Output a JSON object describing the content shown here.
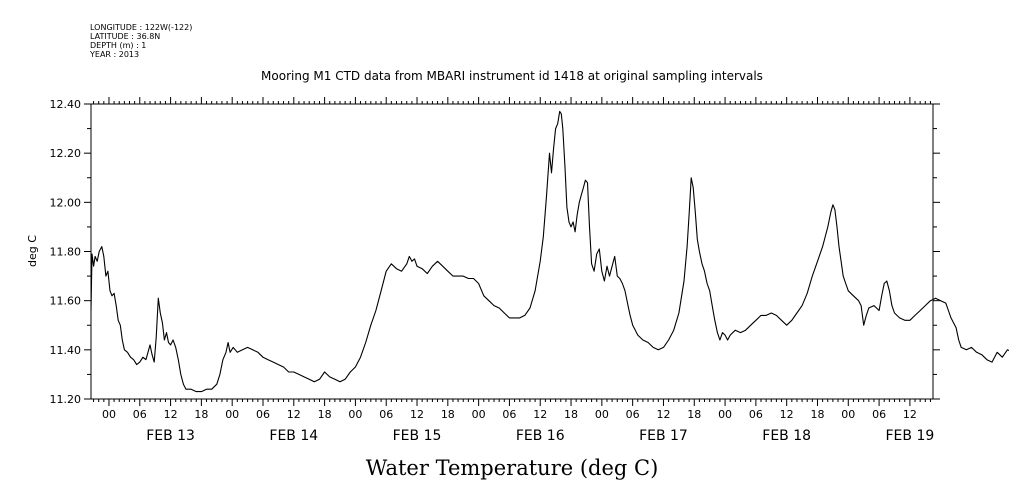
{
  "header": {
    "longitude": "LONGITUDE : 122W(-122)",
    "latitude": "LATITUDE : 36.8N",
    "depth": "DEPTH (m) : 1",
    "year": "YEAR : 2013"
  },
  "chart_data": {
    "type": "line",
    "title": "Mooring M1 CTD data from MBARI instrument id 1418 at original sampling intervals",
    "xlabel": "Water Temperature (deg C)",
    "ylabel": "deg C",
    "ylim": [
      11.2,
      12.4
    ],
    "yticks": [
      "11.20",
      "11.40",
      "11.60",
      "11.80",
      "12.00",
      "12.20",
      "12.40"
    ],
    "xlim_hours": [
      -3.5,
      160.5
    ],
    "x_unit": "hours since FEB 13 00:00",
    "hour_labels": [
      "00",
      "06",
      "12",
      "18"
    ],
    "days": [
      "FEB 13",
      "FEB 14",
      "FEB 15",
      "FEB 16",
      "FEB 17",
      "FEB 18",
      "FEB 19"
    ],
    "grid": false,
    "series": [
      {
        "values": [
          [
            -3.5,
            11.56
          ],
          [
            -3.3,
            11.79
          ],
          [
            -3.0,
            11.74
          ],
          [
            -2.7,
            11.78
          ],
          [
            -2.3,
            11.76
          ],
          [
            -1.9,
            11.8
          ],
          [
            -1.4,
            11.82
          ],
          [
            -1.0,
            11.78
          ],
          [
            -0.6,
            11.7
          ],
          [
            -0.2,
            11.72
          ],
          [
            0.2,
            11.64
          ],
          [
            0.6,
            11.62
          ],
          [
            1.0,
            11.63
          ],
          [
            1.4,
            11.58
          ],
          [
            1.8,
            11.52
          ],
          [
            2.2,
            11.5
          ],
          [
            2.6,
            11.44
          ],
          [
            3.0,
            11.4
          ],
          [
            3.6,
            11.39
          ],
          [
            4.2,
            11.37
          ],
          [
            4.8,
            11.36
          ],
          [
            5.4,
            11.34
          ],
          [
            6.0,
            11.35
          ],
          [
            6.6,
            11.37
          ],
          [
            7.2,
            11.36
          ],
          [
            7.6,
            11.39
          ],
          [
            8.0,
            11.42
          ],
          [
            8.4,
            11.38
          ],
          [
            8.8,
            11.35
          ],
          [
            9.2,
            11.45
          ],
          [
            9.6,
            11.61
          ],
          [
            10.0,
            11.55
          ],
          [
            10.4,
            11.51
          ],
          [
            10.8,
            11.44
          ],
          [
            11.2,
            11.47
          ],
          [
            11.6,
            11.43
          ],
          [
            12.0,
            11.42
          ],
          [
            12.5,
            11.44
          ],
          [
            13.0,
            11.41
          ],
          [
            13.5,
            11.36
          ],
          [
            14.0,
            11.3
          ],
          [
            14.5,
            11.26
          ],
          [
            15.0,
            11.24
          ],
          [
            16.0,
            11.24
          ],
          [
            17.0,
            11.23
          ],
          [
            18.0,
            11.23
          ],
          [
            19.0,
            11.24
          ],
          [
            20.0,
            11.24
          ],
          [
            21.0,
            11.26
          ],
          [
            21.6,
            11.3
          ],
          [
            22.2,
            11.36
          ],
          [
            22.8,
            11.39
          ],
          [
            23.2,
            11.43
          ],
          [
            23.6,
            11.39
          ],
          [
            24.2,
            11.41
          ],
          [
            25.0,
            11.39
          ],
          [
            26.0,
            11.4
          ],
          [
            27.0,
            11.41
          ],
          [
            28.0,
            11.4
          ],
          [
            29.0,
            11.39
          ],
          [
            30.0,
            11.37
          ],
          [
            31.0,
            11.36
          ],
          [
            32.0,
            11.35
          ],
          [
            33.0,
            11.34
          ],
          [
            34.0,
            11.33
          ],
          [
            35.0,
            11.31
          ],
          [
            36.0,
            11.31
          ],
          [
            37.0,
            11.3
          ],
          [
            38.0,
            11.29
          ],
          [
            39.0,
            11.28
          ],
          [
            40.0,
            11.27
          ],
          [
            41.0,
            11.28
          ],
          [
            42.0,
            11.31
          ],
          [
            43.0,
            11.29
          ],
          [
            44.0,
            11.28
          ],
          [
            45.0,
            11.27
          ],
          [
            46.0,
            11.28
          ],
          [
            47.0,
            11.31
          ],
          [
            48.0,
            11.33
          ],
          [
            49.0,
            11.37
          ],
          [
            50.0,
            11.43
          ],
          [
            51.0,
            11.5
          ],
          [
            52.0,
            11.56
          ],
          [
            53.0,
            11.64
          ],
          [
            54.0,
            11.72
          ],
          [
            55.0,
            11.75
          ],
          [
            56.0,
            11.73
          ],
          [
            57.0,
            11.72
          ],
          [
            58.0,
            11.75
          ],
          [
            58.5,
            11.78
          ],
          [
            59.0,
            11.76
          ],
          [
            59.5,
            11.77
          ],
          [
            60.0,
            11.74
          ],
          [
            61.0,
            11.73
          ],
          [
            62.0,
            11.71
          ],
          [
            63.0,
            11.74
          ],
          [
            64.0,
            11.76
          ],
          [
            65.0,
            11.74
          ],
          [
            66.0,
            11.72
          ],
          [
            67.0,
            11.7
          ],
          [
            68.0,
            11.7
          ],
          [
            69.0,
            11.7
          ],
          [
            70.0,
            11.69
          ],
          [
            71.0,
            11.69
          ],
          [
            72.0,
            11.67
          ],
          [
            73.0,
            11.62
          ],
          [
            74.0,
            11.6
          ],
          [
            75.0,
            11.58
          ],
          [
            76.0,
            11.57
          ],
          [
            77.0,
            11.55
          ],
          [
            78.0,
            11.53
          ],
          [
            79.0,
            11.53
          ],
          [
            80.0,
            11.53
          ],
          [
            81.0,
            11.54
          ],
          [
            82.0,
            11.57
          ],
          [
            83.0,
            11.64
          ],
          [
            84.0,
            11.76
          ],
          [
            84.6,
            11.86
          ],
          [
            85.2,
            12.02
          ],
          [
            85.8,
            12.2
          ],
          [
            86.2,
            12.12
          ],
          [
            86.6,
            12.22
          ],
          [
            87.0,
            12.3
          ],
          [
            87.4,
            12.32
          ],
          [
            87.8,
            12.37
          ],
          [
            88.1,
            12.36
          ],
          [
            88.4,
            12.3
          ],
          [
            88.8,
            12.15
          ],
          [
            89.2,
            11.98
          ],
          [
            89.6,
            11.92
          ],
          [
            90.0,
            11.9
          ],
          [
            90.4,
            11.92
          ],
          [
            90.8,
            11.88
          ],
          [
            91.2,
            11.95
          ],
          [
            91.6,
            12.0
          ],
          [
            92.0,
            12.03
          ],
          [
            92.4,
            12.06
          ],
          [
            92.8,
            12.09
          ],
          [
            93.2,
            12.08
          ],
          [
            93.6,
            11.9
          ],
          [
            94.0,
            11.75
          ],
          [
            94.5,
            11.72
          ],
          [
            95.0,
            11.79
          ],
          [
            95.5,
            11.81
          ],
          [
            96.0,
            11.72
          ],
          [
            96.5,
            11.68
          ],
          [
            97.0,
            11.74
          ],
          [
            97.5,
            11.7
          ],
          [
            98.0,
            11.74
          ],
          [
            98.5,
            11.78
          ],
          [
            99.0,
            11.7
          ],
          [
            99.5,
            11.69
          ],
          [
            100.0,
            11.67
          ],
          [
            100.5,
            11.64
          ],
          [
            101.0,
            11.59
          ],
          [
            101.5,
            11.54
          ],
          [
            102.0,
            11.5
          ],
          [
            103.0,
            11.46
          ],
          [
            104.0,
            11.44
          ],
          [
            105.0,
            11.43
          ],
          [
            106.0,
            11.41
          ],
          [
            107.0,
            11.4
          ],
          [
            108.0,
            11.41
          ],
          [
            109.0,
            11.44
          ],
          [
            110.0,
            11.48
          ],
          [
            111.0,
            11.55
          ],
          [
            112.0,
            11.68
          ],
          [
            112.6,
            11.82
          ],
          [
            113.0,
            11.95
          ],
          [
            113.4,
            12.1
          ],
          [
            113.8,
            12.06
          ],
          [
            114.2,
            11.96
          ],
          [
            114.6,
            11.85
          ],
          [
            115.0,
            11.8
          ],
          [
            115.5,
            11.75
          ],
          [
            116.0,
            11.72
          ],
          [
            116.5,
            11.67
          ],
          [
            117.0,
            11.64
          ],
          [
            117.5,
            11.58
          ],
          [
            118.0,
            11.52
          ],
          [
            118.5,
            11.47
          ],
          [
            119.0,
            11.44
          ],
          [
            119.5,
            11.47
          ],
          [
            120.0,
            11.46
          ],
          [
            120.5,
            11.44
          ],
          [
            121.0,
            11.46
          ],
          [
            122.0,
            11.48
          ],
          [
            123.0,
            11.47
          ],
          [
            124.0,
            11.48
          ],
          [
            125.0,
            11.5
          ],
          [
            126.0,
            11.52
          ],
          [
            127.0,
            11.54
          ],
          [
            128.0,
            11.54
          ],
          [
            129.0,
            11.55
          ],
          [
            130.0,
            11.54
          ],
          [
            131.0,
            11.52
          ],
          [
            132.0,
            11.5
          ],
          [
            133.0,
            11.52
          ],
          [
            134.0,
            11.55
          ],
          [
            135.0,
            11.58
          ],
          [
            136.0,
            11.63
          ],
          [
            137.0,
            11.7
          ],
          [
            138.0,
            11.76
          ],
          [
            139.0,
            11.82
          ],
          [
            140.0,
            11.9
          ],
          [
            140.6,
            11.96
          ],
          [
            141.0,
            11.99
          ],
          [
            141.4,
            11.97
          ],
          [
            141.8,
            11.9
          ],
          [
            142.2,
            11.82
          ],
          [
            142.6,
            11.76
          ],
          [
            143.0,
            11.7
          ],
          [
            143.5,
            11.67
          ],
          [
            144.0,
            11.64
          ],
          [
            145.0,
            11.62
          ],
          [
            146.0,
            11.6
          ],
          [
            146.5,
            11.58
          ],
          [
            147.0,
            11.5
          ],
          [
            147.5,
            11.54
          ],
          [
            148.0,
            11.57
          ],
          [
            149.0,
            11.58
          ],
          [
            150.0,
            11.56
          ],
          [
            150.5,
            11.62
          ],
          [
            151.0,
            11.67
          ],
          [
            151.5,
            11.68
          ],
          [
            152.0,
            11.64
          ],
          [
            152.5,
            11.58
          ],
          [
            153.0,
            11.55
          ],
          [
            154.0,
            11.53
          ],
          [
            155.0,
            11.52
          ],
          [
            156.0,
            11.52
          ],
          [
            157.0,
            11.54
          ],
          [
            158.0,
            11.56
          ],
          [
            159.0,
            11.58
          ],
          [
            160.0,
            11.6
          ],
          [
            161.0,
            11.61
          ],
          [
            162.0,
            11.6
          ],
          [
            163.0,
            11.59
          ],
          [
            163.5,
            11.56
          ],
          [
            164.0,
            11.53
          ],
          [
            165.0,
            11.49
          ],
          [
            165.5,
            11.44
          ],
          [
            166.0,
            11.41
          ],
          [
            167.0,
            11.4
          ],
          [
            168.0,
            11.41
          ],
          [
            169.0,
            11.39
          ],
          [
            170.0,
            11.38
          ],
          [
            171.0,
            11.36
          ],
          [
            172.0,
            11.35
          ],
          [
            173.0,
            11.39
          ],
          [
            174.0,
            11.37
          ],
          [
            175.0,
            11.4
          ],
          [
            176.0,
            11.39
          ],
          [
            177.0,
            11.41
          ],
          [
            178.0,
            11.42
          ],
          [
            180.0,
            11.42
          ],
          [
            182.0,
            11.41
          ],
          [
            183.0,
            11.42
          ],
          [
            184.0,
            11.39
          ],
          [
            185.0,
            11.4
          ]
        ]
      }
    ]
  }
}
